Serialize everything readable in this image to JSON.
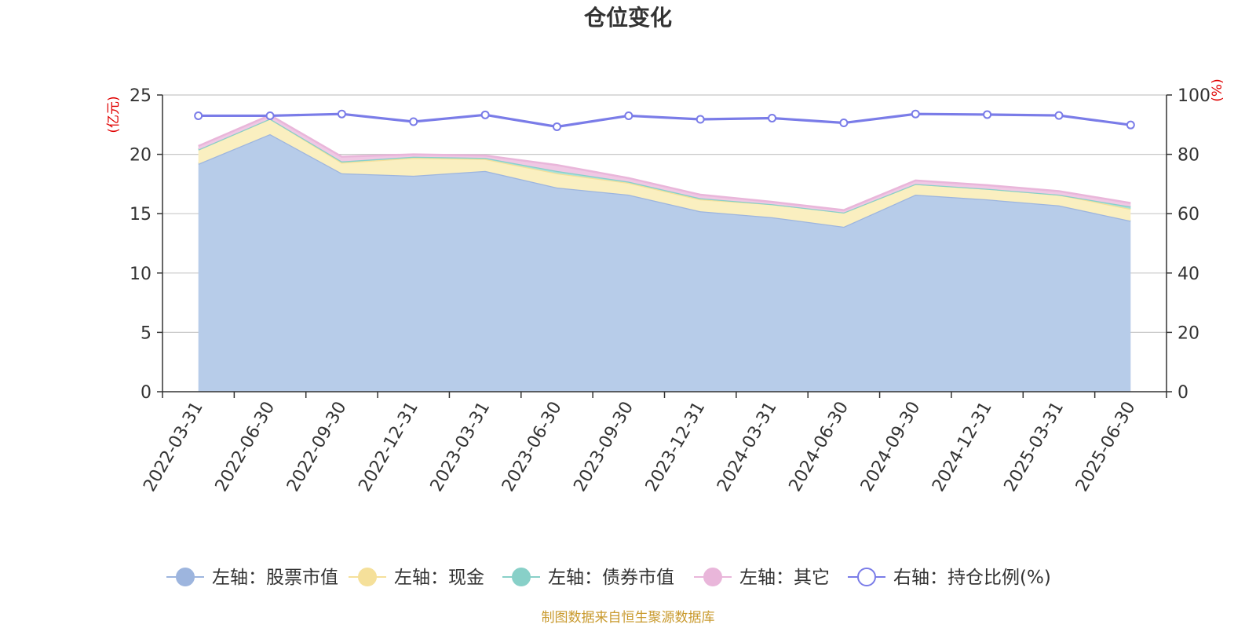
{
  "chart_data": {
    "type": "area",
    "title": "仓位变化",
    "categories": [
      "2022-03-31",
      "2022-06-30",
      "2022-09-30",
      "2022-12-31",
      "2023-03-31",
      "2023-06-30",
      "2023-09-30",
      "2023-12-31",
      "2024-03-31",
      "2024-06-30",
      "2024-09-30",
      "2024-12-31",
      "2025-03-31",
      "2025-06-30"
    ],
    "left_axis": {
      "unit": "(亿元)",
      "ylim": [
        0,
        25
      ],
      "ticks": [
        0,
        5,
        10,
        15,
        20,
        25
      ]
    },
    "right_axis": {
      "unit": "(%)",
      "ylim": [
        0,
        100
      ],
      "ticks": [
        0,
        20,
        40,
        60,
        80,
        100
      ]
    },
    "stacked_series": [
      {
        "name": "左轴：股票市值",
        "color": "#9db5de",
        "fill": "#b7cce9",
        "values": [
          19.2,
          21.7,
          18.4,
          18.2,
          18.6,
          17.2,
          16.6,
          15.2,
          14.7,
          13.9,
          16.6,
          16.2,
          15.7,
          14.4
        ]
      },
      {
        "name": "左轴：现金",
        "color": "#f5e09a",
        "fill": "#faefc0",
        "values": [
          1.2,
          1.3,
          0.9,
          1.5,
          1.0,
          1.2,
          1.0,
          1.0,
          1.1,
          1.2,
          0.9,
          0.9,
          0.9,
          1.0
        ]
      },
      {
        "name": "左轴：债券市值",
        "color": "#88d0c8",
        "fill": "#a8e0d8",
        "values": [
          0.0,
          0.0,
          0.1,
          0.1,
          0.1,
          0.2,
          0.1,
          0.1,
          0.0,
          0.0,
          0.0,
          0.0,
          0.0,
          0.2
        ]
      },
      {
        "name": "左轴：其它",
        "color": "#e9b6da",
        "fill": "#f0c8e4",
        "values": [
          0.3,
          0.3,
          0.4,
          0.2,
          0.2,
          0.5,
          0.3,
          0.3,
          0.2,
          0.2,
          0.3,
          0.3,
          0.3,
          0.3
        ]
      }
    ],
    "line_series": {
      "name": "右轴：持仓比例(%)",
      "color": "#7a7ce8",
      "values": [
        93.0,
        93.0,
        93.6,
        91.0,
        93.3,
        89.3,
        93.0,
        91.8,
        92.2,
        90.6,
        93.6,
        93.4,
        93.1,
        89.9
      ]
    },
    "grid": true,
    "legend_position": "bottom"
  },
  "source_note": "制图数据来自恒生聚源数据库"
}
